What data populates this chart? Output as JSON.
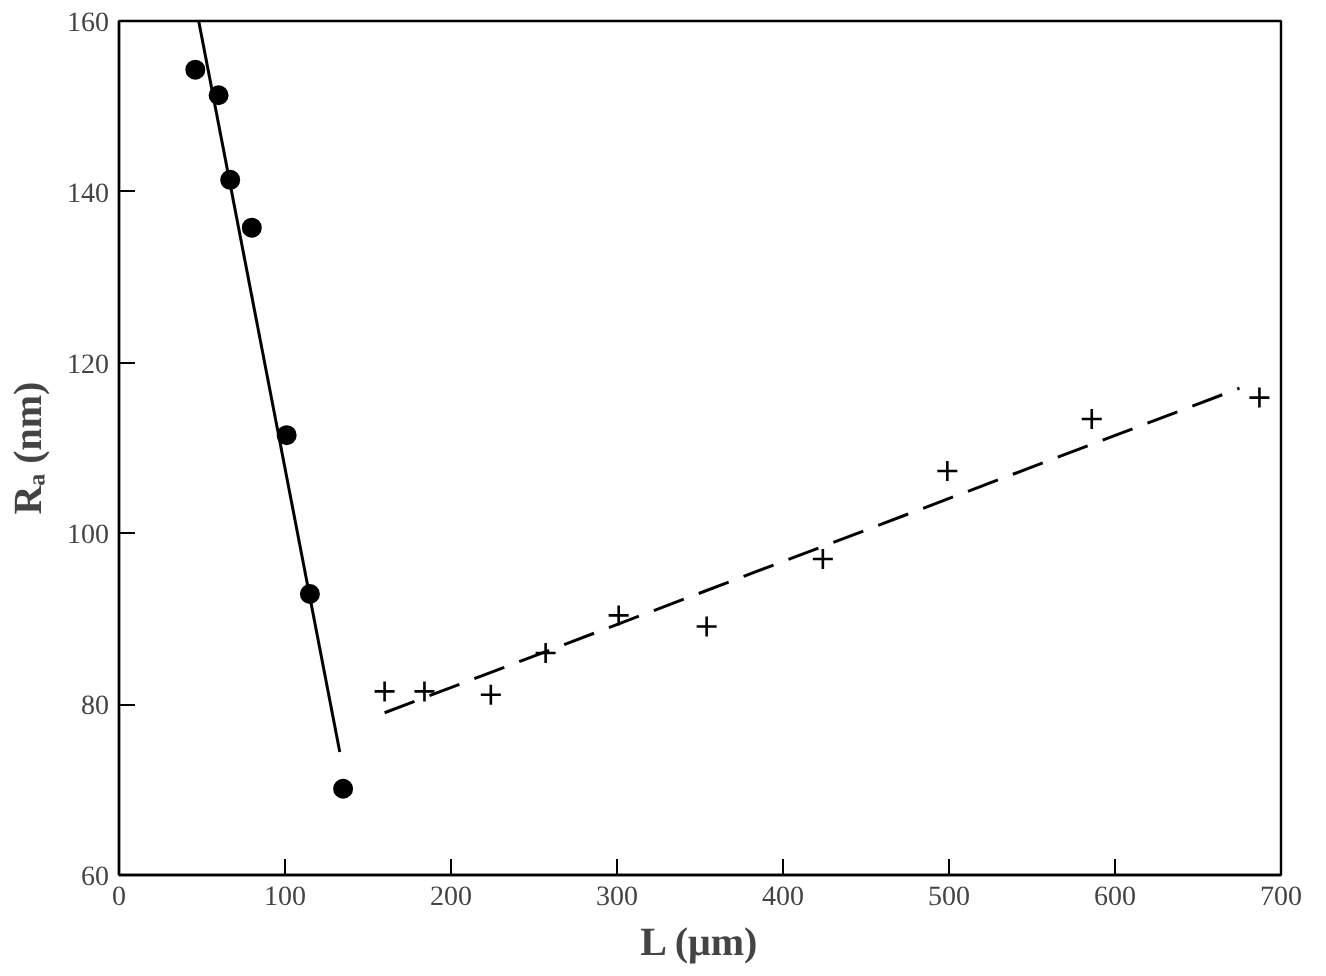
{
  "chart_data": {
    "type": "scatter",
    "xlabel": "L (μm)",
    "ylabel": "Rₐ (nm)",
    "xlim": [
      0,
      700
    ],
    "ylim": [
      60,
      160
    ],
    "xticks": [
      0,
      100,
      200,
      300,
      400,
      500,
      600,
      700
    ],
    "yticks": [
      60,
      80,
      100,
      120,
      140,
      160
    ],
    "grid": false,
    "series": [
      {
        "marker": "circle",
        "color": "#000000",
        "x": [
          46,
          60,
          67,
          80,
          101,
          115,
          135
        ],
        "values": [
          154.3,
          151.3,
          141.4,
          135.8,
          111.5,
          92.9,
          70.1
        ]
      },
      {
        "type": "line",
        "line_style": "solid",
        "color": "#000000",
        "x": [
          48,
          133
        ],
        "values": [
          160,
          74.4
        ]
      },
      {
        "marker": "cross",
        "color": "#000000",
        "x": [
          160,
          184,
          224,
          257,
          301,
          354,
          424,
          499,
          586,
          687
        ],
        "values": [
          81.5,
          81.5,
          81.1,
          86.0,
          90.4,
          89.1,
          97.0,
          107.3,
          113.4,
          115.9
        ]
      },
      {
        "type": "line",
        "line_style": "dashed",
        "color": "#000000",
        "x": [
          160,
          675
        ],
        "values": [
          79.0,
          117.0
        ]
      }
    ]
  }
}
